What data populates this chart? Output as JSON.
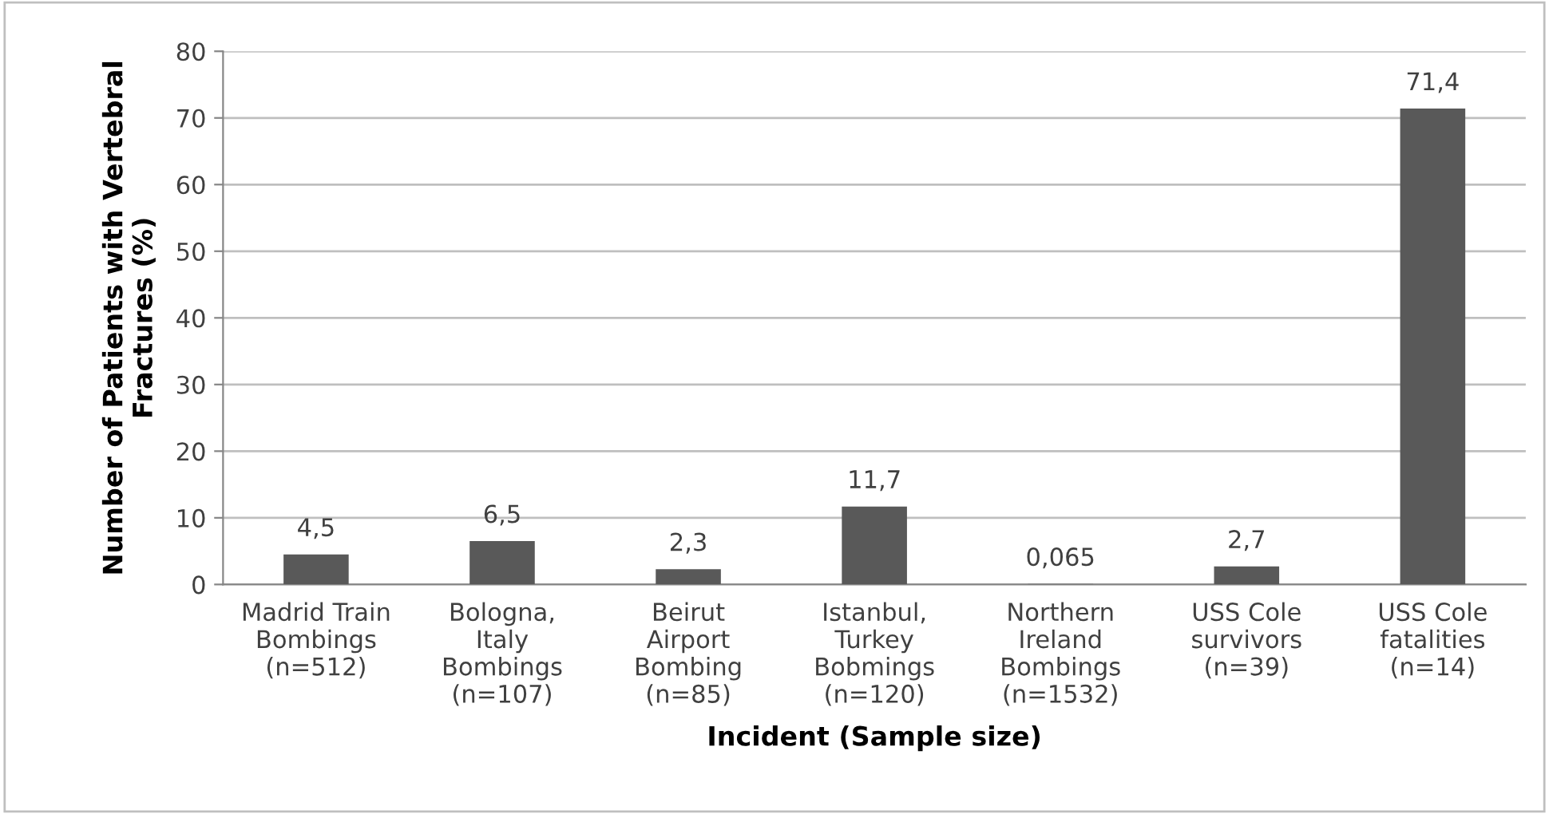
{
  "chart_data": {
    "type": "bar",
    "xlabel": "Incident (Sample size)",
    "ylabel": "Number of Patients with Vertebral\nFractures (%)",
    "categories": [
      "Madrid Train\nBombings\n(n=512)",
      "Bologna,\nItaly\nBombings\n(n=107)",
      "Beirut\nAirport\nBombing\n(n=85)",
      "Istanbul,\nTurkey\nBobmings\n(n=120)",
      "Northern\nIreland\nBombings\n(n=1532)",
      "USS Cole\nsurvivors\n(n=39)",
      "USS Cole\nfatalities\n(n=14)"
    ],
    "values": [
      4.5,
      6.5,
      2.3,
      11.7,
      0.065,
      2.7,
      71.4
    ],
    "value_labels": [
      "4,5",
      "6,5",
      "2,3",
      "11,7",
      "0,065",
      "2,7",
      "71,4"
    ],
    "color": "#595959",
    "ylim": [
      0,
      80
    ],
    "yticks": [
      0,
      10,
      20,
      30,
      40,
      50,
      60,
      70,
      80
    ],
    "grid": "y",
    "legend": false
  }
}
